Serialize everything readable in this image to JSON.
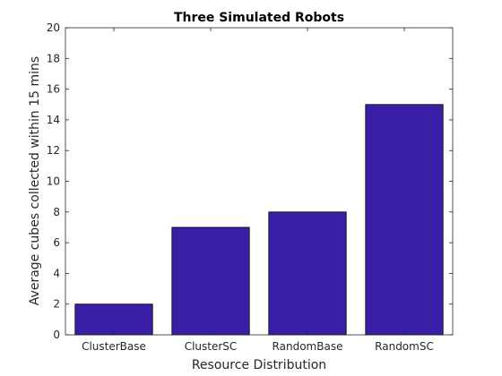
{
  "chart_data": {
    "type": "bar",
    "title": "Three Simulated Robots",
    "xlabel": "Resource Distribution",
    "ylabel": "Average cubes collected within 15 mins",
    "categories": [
      "ClusterBase",
      "ClusterSC",
      "RandomBase",
      "RandomSC"
    ],
    "values": [
      2,
      7,
      8,
      15
    ],
    "ylim": [
      0,
      20
    ],
    "yticks": [
      0,
      2,
      4,
      6,
      8,
      10,
      12,
      14,
      16,
      18,
      20
    ],
    "grid": false,
    "legend": "none",
    "bar_color": "#3a1fa6",
    "bar_edge_color": "#000000"
  }
}
